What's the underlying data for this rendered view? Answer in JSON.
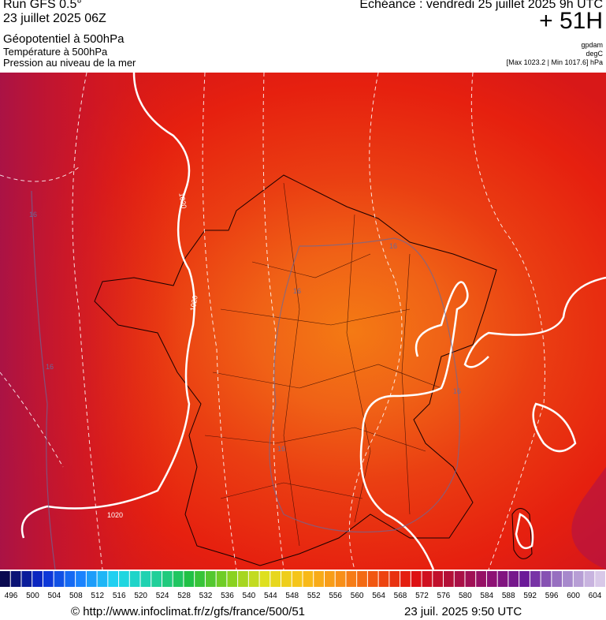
{
  "header": {
    "run": "Run GFS 0.5°",
    "date": "23 juillet 2025 06Z",
    "field1": "Géopotentiel à 500hPa",
    "field2": "Température à 500hPa",
    "field3": "Pression au niveau de la mer",
    "echeance": "Echéance : vendredi 25 juillet 2025 9h UTC",
    "lead": "+ 51H",
    "unit1": "gpdam",
    "unit2": "degC",
    "range": "[Max 1023.2 | Min 1017.6] hPa"
  },
  "map": {
    "isobar_labels": [
      "1020",
      "1020",
      "1020"
    ],
    "temperature_labels": [
      "16",
      "16",
      "16",
      "16",
      "16",
      "16"
    ]
  },
  "legend": {
    "labels": [
      496,
      500,
      504,
      508,
      512,
      516,
      520,
      524,
      528,
      532,
      536,
      540,
      544,
      548,
      552,
      556,
      560,
      564,
      568,
      572,
      576,
      580,
      584,
      588,
      592,
      596,
      600,
      604
    ]
  },
  "footer": {
    "source": "© http://www.infoclimat.fr/z/gfs/france/500/51",
    "timestamp": "23 juil. 2025  9:50 UTC"
  }
}
